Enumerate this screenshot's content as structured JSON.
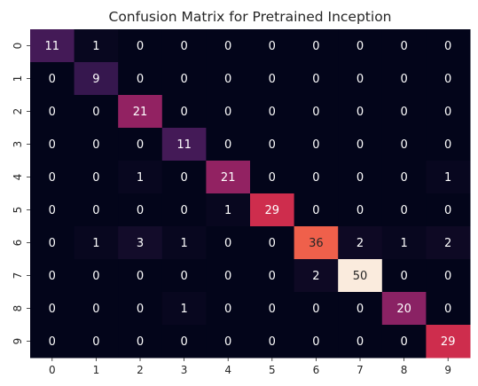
{
  "chart_data": {
    "type": "heatmap",
    "title": "Confusion Matrix for Pretrained Inception",
    "xlabel": "",
    "ylabel": "",
    "x_tick_labels": [
      "0",
      "1",
      "2",
      "3",
      "4",
      "5",
      "6",
      "7",
      "8",
      "9"
    ],
    "y_tick_labels": [
      "0",
      "1",
      "2",
      "3",
      "4",
      "5",
      "6",
      "7",
      "8",
      "9"
    ],
    "matrix": [
      [
        11,
        1,
        0,
        0,
        0,
        0,
        0,
        0,
        0,
        0
      ],
      [
        0,
        9,
        0,
        0,
        0,
        0,
        0,
        0,
        0,
        0
      ],
      [
        0,
        0,
        21,
        0,
        0,
        0,
        0,
        0,
        0,
        0
      ],
      [
        0,
        0,
        0,
        11,
        0,
        0,
        0,
        0,
        0,
        0
      ],
      [
        0,
        0,
        1,
        0,
        21,
        0,
        0,
        0,
        0,
        1
      ],
      [
        0,
        0,
        0,
        0,
        1,
        29,
        0,
        0,
        0,
        0
      ],
      [
        0,
        1,
        3,
        1,
        0,
        0,
        36,
        2,
        1,
        2
      ],
      [
        0,
        0,
        0,
        0,
        0,
        0,
        2,
        50,
        0,
        0
      ],
      [
        0,
        0,
        0,
        1,
        0,
        0,
        0,
        0,
        20,
        0
      ],
      [
        0,
        0,
        0,
        0,
        0,
        0,
        0,
        0,
        0,
        29
      ]
    ],
    "value_range": [
      0,
      50
    ],
    "colormap": "rocket",
    "annotations": true,
    "colorbar": false,
    "grid": false
  }
}
